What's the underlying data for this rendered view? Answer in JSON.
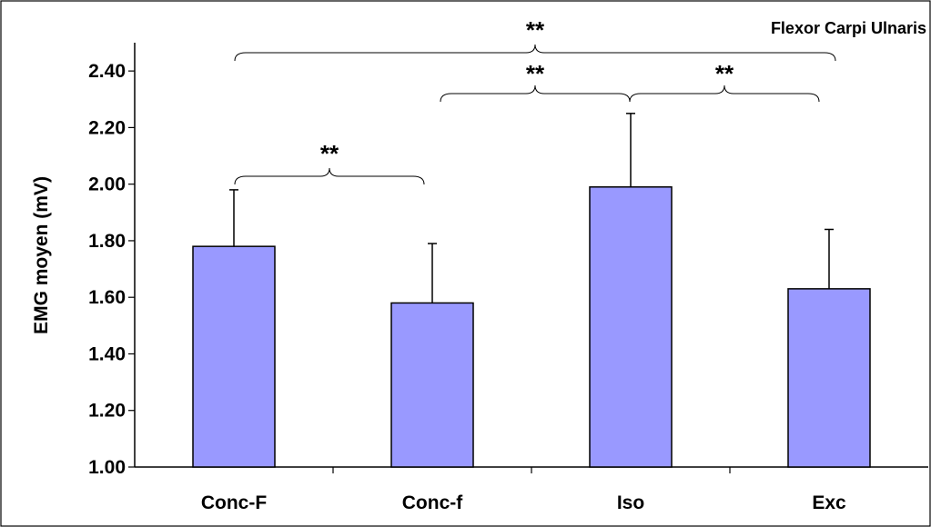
{
  "chart_data": {
    "type": "bar",
    "title": "Flexor Carpi Ulnaris",
    "xlabel": "",
    "ylabel": "EMG moyen (mV)",
    "categories": [
      "Conc-F",
      "Conc-f",
      "Iso",
      "Exc"
    ],
    "values": [
      1.78,
      1.58,
      1.99,
      1.63
    ],
    "error_upper": [
      0.2,
      0.21,
      0.26,
      0.21
    ],
    "ylim": [
      1.0,
      2.5
    ],
    "yticks": [
      "1.00",
      "1.20",
      "1.40",
      "1.60",
      "1.80",
      "2.00",
      "2.20",
      "2.40"
    ],
    "bar_color": "#9999ff",
    "grid": false,
    "legend": "none",
    "significance": [
      {
        "from": 0,
        "to": 1,
        "label": "**"
      },
      {
        "from": 1,
        "to": 3,
        "label": "**"
      },
      {
        "from": 2,
        "to": 3,
        "label": "**"
      },
      {
        "from": 0,
        "to": 3,
        "label": "**"
      }
    ]
  }
}
